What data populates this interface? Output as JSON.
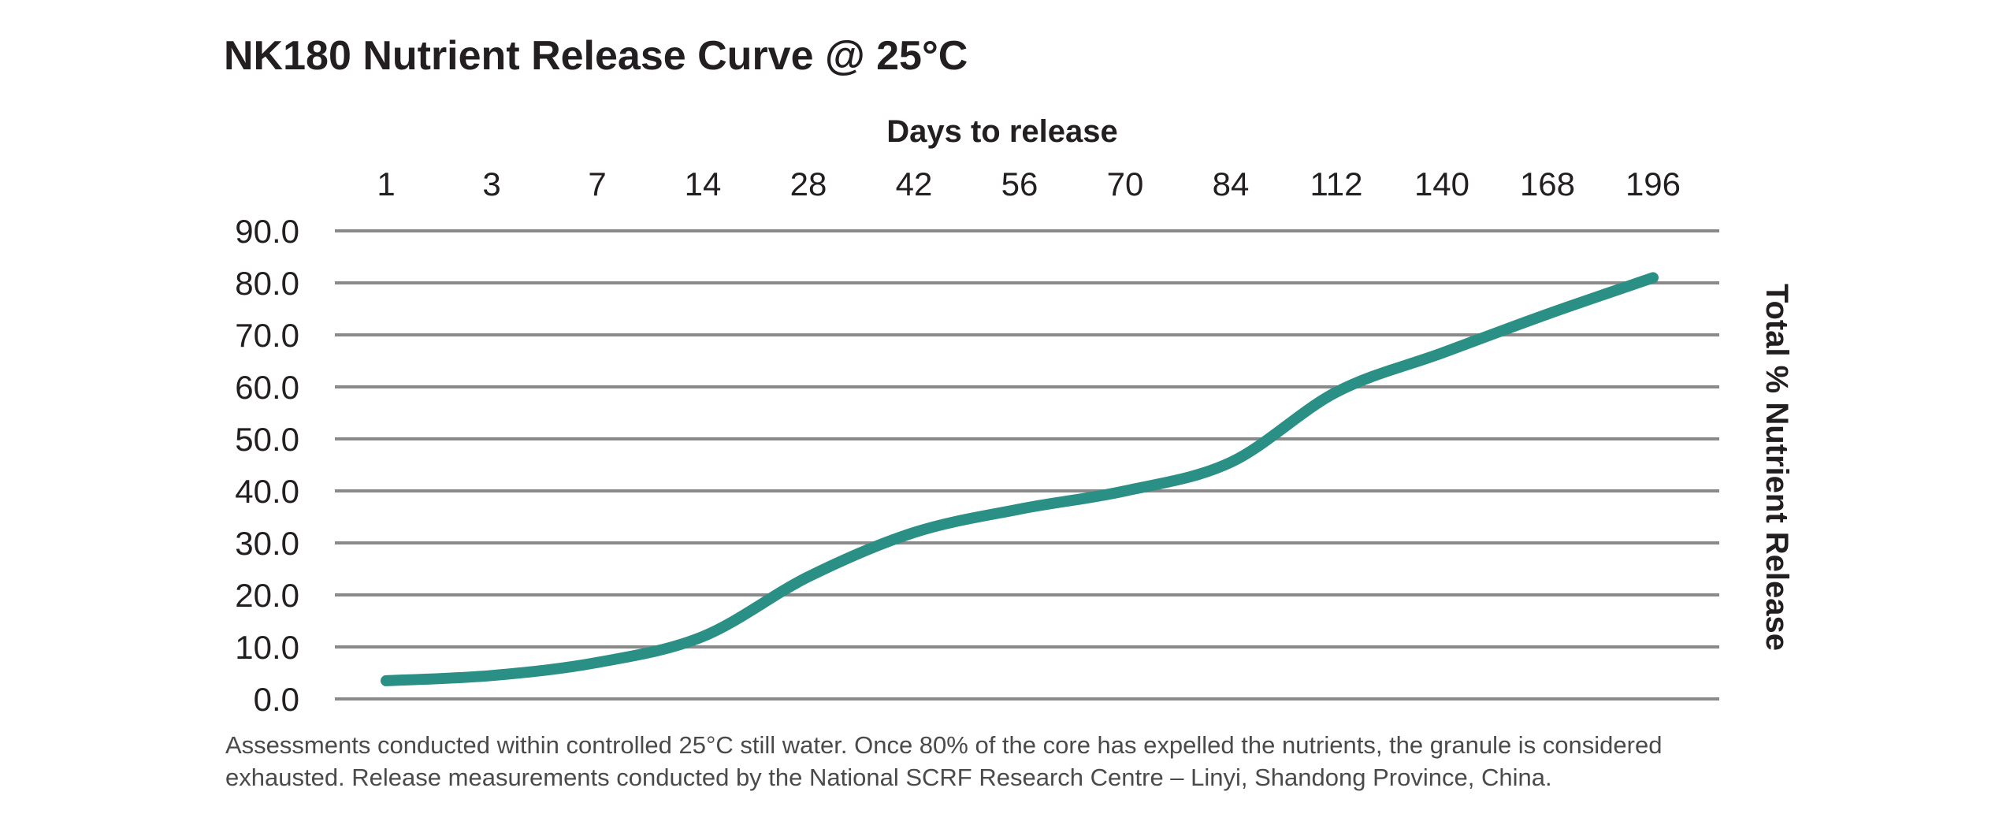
{
  "chart_data": {
    "type": "line",
    "title": "NK180 Nutrient Release Curve @ 25°C",
    "xlabel": "Days to release",
    "ylabel": "Total % Nutrient Release",
    "x_axis_position": "top",
    "y_label_position": "right",
    "categories": [
      "1",
      "3",
      "7",
      "14",
      "28",
      "42",
      "56",
      "70",
      "84",
      "112",
      "140",
      "168",
      "196"
    ],
    "yticks": [
      "90.0",
      "80.0",
      "70.0",
      "60.0",
      "50.0",
      "40.0",
      "30.0",
      "20.0",
      "10.0",
      "0.0"
    ],
    "ylim": [
      0,
      90
    ],
    "grid": true,
    "series": [
      {
        "values": [
          3.5,
          4.5,
          7.0,
          12.0,
          23.5,
          32.0,
          36.5,
          40.0,
          45.5,
          59.0,
          66.5,
          74.0,
          81.0
        ],
        "color": "#2a8f84"
      }
    ]
  },
  "footnote": {
    "line1": "Assessments conducted within controlled 25°C still water. Once 80% of the core has expelled the nutrients, the granule is considered",
    "line2": "exhausted. Release measurements conducted by the National SCRF Research Centre – Linyi, Shandong Province, China."
  }
}
